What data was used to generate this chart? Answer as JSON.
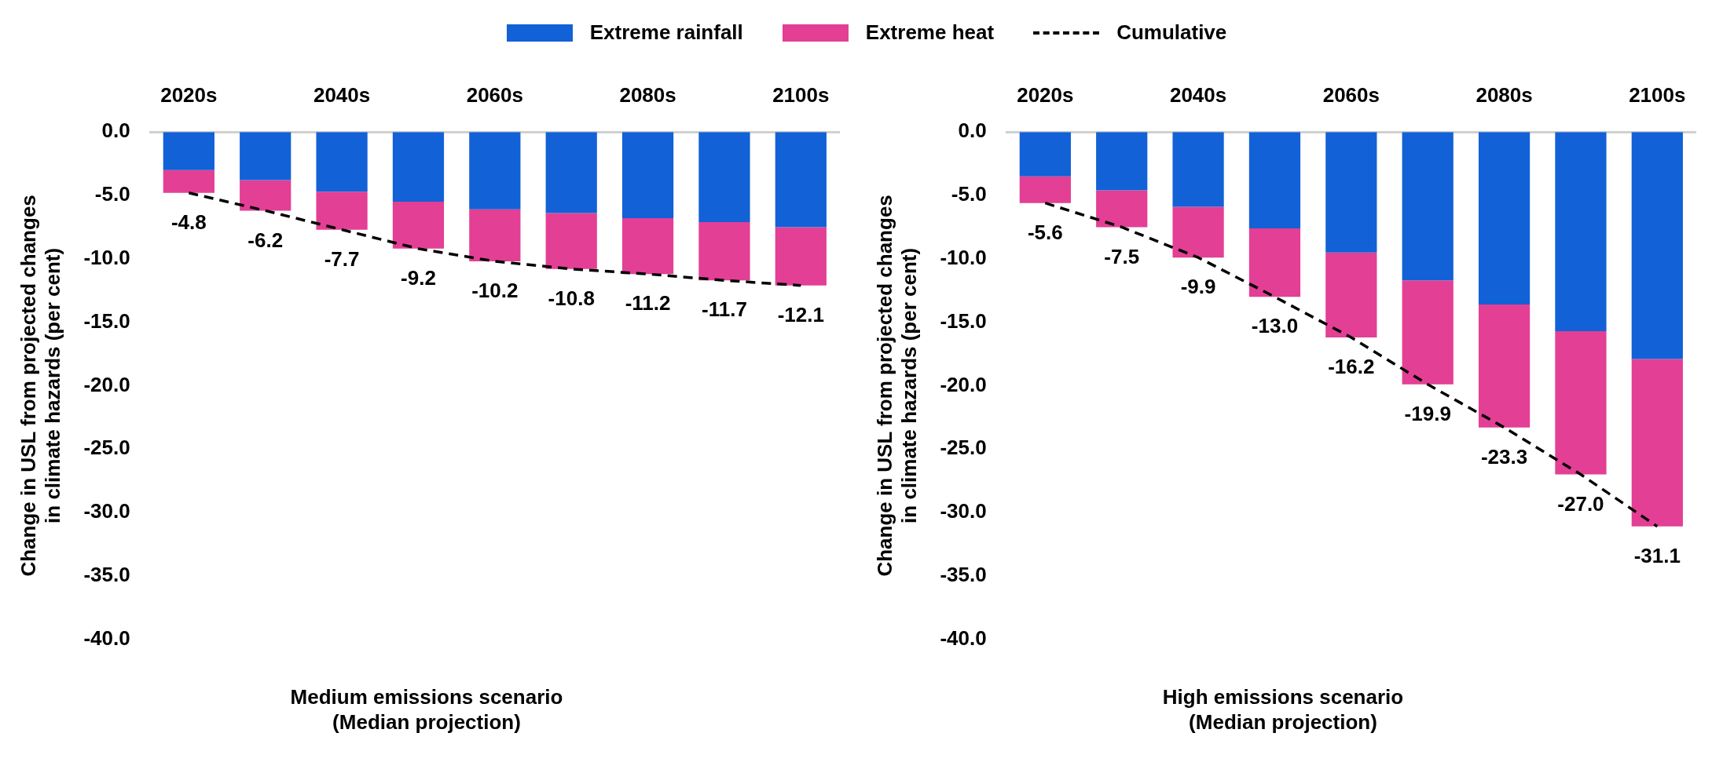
{
  "chart_data": [
    {
      "type": "bar",
      "stacked": true,
      "legend": "top",
      "xlabel": "Medium emissions scenario\n(Median projection)",
      "ylabel": "Change in USL from projected changes in climate hazards (per cent)",
      "categories": [
        "2020s",
        null,
        "2040s",
        null,
        "2060s",
        null,
        "2080s",
        null,
        "2100s"
      ],
      "ylim": [
        -40,
        0
      ],
      "yticks": [
        {
          "value": -40,
          "label": "-40.0"
        },
        {
          "value": -35,
          "label": "-35.0"
        },
        {
          "value": -30,
          "label": "-30.0"
        },
        {
          "value": -25,
          "label": "-25.0"
        },
        {
          "value": -20,
          "label": "-20.0"
        },
        {
          "value": -15,
          "label": "-15.0"
        },
        {
          "value": -10,
          "label": "-10.0"
        },
        {
          "value": -5,
          "label": "-5.0"
        },
        {
          "value": 0,
          "label": "0.0"
        }
      ],
      "series": [
        {
          "name": "Extreme rainfall",
          "color": "#1261d6",
          "values": [
            -3.0,
            -3.8,
            -4.7,
            -5.5,
            -6.1,
            -6.4,
            -6.8,
            -7.1,
            -7.5
          ]
        },
        {
          "name": "Extreme heat",
          "color": "#e33f95",
          "values": [
            -1.8,
            -2.4,
            -3.0,
            -3.7,
            -4.1,
            -4.4,
            -4.4,
            -4.6,
            -4.6
          ]
        },
        {
          "name": "Cumulative",
          "type": "line",
          "color": "#000000",
          "line_style": "dashed",
          "marker": "none",
          "values": [
            -4.8,
            -6.2,
            -7.7,
            -9.2,
            -10.2,
            -10.8,
            -11.2,
            -11.7,
            -12.1
          ],
          "value_labels": [
            "-4.8",
            "-6.2",
            "-7.7",
            "-9.2",
            "-10.2",
            "-10.8",
            "-11.2",
            "-11.7",
            "-12.1"
          ]
        }
      ]
    },
    {
      "type": "bar",
      "stacked": true,
      "xlabel": "High emissions scenario\n(Median projection)",
      "ylabel": "Change in USL from projected changes in climate hazards (per cent)",
      "categories": [
        "2020s",
        null,
        "2040s",
        null,
        "2060s",
        null,
        "2080s",
        null,
        "2100s"
      ],
      "ylim": [
        -40,
        0
      ],
      "yticks": [
        {
          "value": -40,
          "label": "-40.0"
        },
        {
          "value": -35,
          "label": "-35.0"
        },
        {
          "value": -30,
          "label": "-30.0"
        },
        {
          "value": -25,
          "label": "-25.0"
        },
        {
          "value": -20,
          "label": "-20.0"
        },
        {
          "value": -15,
          "label": "-15.0"
        },
        {
          "value": -10,
          "label": "-10.0"
        },
        {
          "value": -5,
          "label": "-5.0"
        },
        {
          "value": 0,
          "label": "0.0"
        }
      ],
      "series": [
        {
          "color": "#1261d6",
          "values": [
            -3.5,
            -4.6,
            -5.9,
            -7.6,
            -9.5,
            -11.7,
            -13.6,
            -15.7,
            -17.9
          ]
        },
        {
          "color": "#e33f95",
          "values": [
            -2.1,
            -2.9,
            -4.0,
            -5.4,
            -6.7,
            -8.2,
            -9.7,
            -11.3,
            -13.2
          ]
        },
        {
          "type": "line",
          "color": "#000000",
          "line_style": "dashed",
          "marker": "none",
          "values": [
            -5.6,
            -7.5,
            -9.9,
            -13.0,
            -16.2,
            -19.9,
            -23.3,
            -27.0,
            -31.1
          ],
          "value_labels": [
            "-5.6",
            "-7.5",
            "-9.9",
            "-13.0",
            "-16.2",
            "-19.9",
            "-23.3",
            "-27.0",
            "-31.1"
          ]
        }
      ]
    }
  ]
}
